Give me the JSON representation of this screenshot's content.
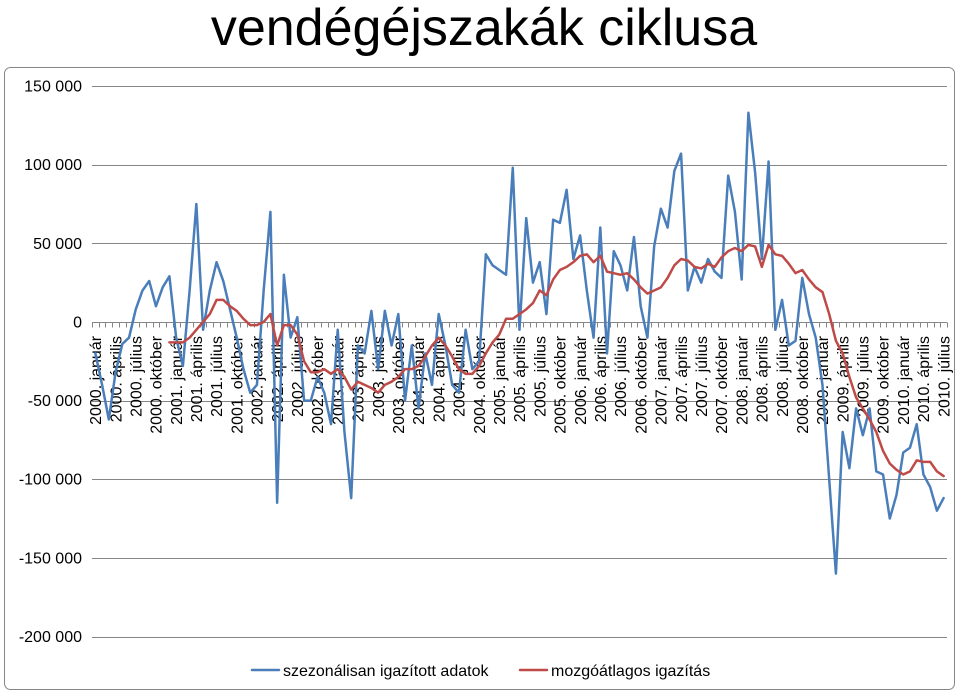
{
  "chart_data": {
    "type": "line",
    "title": "vendégéjszakák ciklusa",
    "categories": [
      "2000. január",
      "",
      "",
      "2000. április",
      "",
      "",
      "2000. július",
      "",
      "",
      "2000. október",
      "",
      "",
      "2001. január",
      "",
      "",
      "2001. április",
      "",
      "",
      "2001. július",
      "",
      "",
      "2001. október",
      "",
      "",
      "2002. január",
      "",
      "",
      "2002. április",
      "",
      "",
      "2002. július",
      "",
      "",
      "2002. október",
      "",
      "",
      "2003. január",
      "",
      "",
      "2003. április",
      "",
      "",
      "2003. július",
      "",
      "",
      "2003. október",
      "",
      "",
      "2004. január",
      "",
      "",
      "2004. április",
      "",
      "",
      "2004. július",
      "",
      "",
      "2004. október",
      "",
      "",
      "2005. január",
      "",
      "",
      "2005. április",
      "",
      "",
      "2005. július",
      "",
      "",
      "2005. október",
      "",
      "",
      "2006. január",
      "",
      "",
      "2006. április",
      "",
      "",
      "2006. július",
      "",
      "",
      "2006. október",
      "",
      "",
      "2007. január",
      "",
      "",
      "2007. április",
      "",
      "",
      "2007. július",
      "",
      "",
      "2007. október",
      "",
      "",
      "2008. január",
      "",
      "",
      "2008. április",
      "",
      "",
      "2008. július",
      "",
      "",
      "2008. október",
      "",
      "",
      "2009. január",
      "",
      "",
      "2009. április",
      "",
      "",
      "2009. július",
      "",
      "",
      "2009. október",
      "",
      "",
      "2010. január",
      "",
      "",
      "2010. április",
      "",
      "",
      "2010. július"
    ],
    "y_ticks": [
      150000,
      100000,
      50000,
      0,
      -50000,
      -100000,
      -150000,
      -200000
    ],
    "y_tick_labels": [
      "150 000",
      "100 000",
      "50 000",
      "0",
      "-50 000",
      "-100 000",
      "-150 000",
      "-200 000"
    ],
    "ylim": [
      -200000,
      150000
    ],
    "grid": true,
    "legend_position": "bottom",
    "series": [
      {
        "name": "szezonálisan igazított adatok",
        "color": "#4a7ebb",
        "values": [
          -20000,
          -40000,
          -62000,
          -32000,
          -14000,
          -10000,
          8000,
          20000,
          26000,
          10000,
          22000,
          29000,
          -10000,
          -28000,
          20000,
          75000,
          -5000,
          20000,
          38000,
          26000,
          8000,
          -10000,
          -30000,
          -45000,
          -40000,
          20000,
          70000,
          -115000,
          30000,
          -10000,
          3000,
          -50000,
          -50000,
          -35000,
          -45000,
          -65000,
          -5000,
          -70000,
          -112000,
          -15000,
          -20000,
          7000,
          -30000,
          7000,
          -15000,
          5000,
          -50000,
          -15000,
          -55000,
          -20000,
          -40000,
          5000,
          -15000,
          -40000,
          -45000,
          -5000,
          -30000,
          -25000,
          43000,
          36000,
          33000,
          30000,
          98000,
          -5000,
          66000,
          25000,
          38000,
          5000,
          65000,
          63000,
          84000,
          40000,
          55000,
          20000,
          -10000,
          60000,
          -20000,
          45000,
          36000,
          20000,
          54000,
          10000,
          -10000,
          48000,
          72000,
          60000,
          96000,
          107000,
          20000,
          35000,
          25000,
          40000,
          32000,
          28000,
          93000,
          70000,
          27000,
          133000,
          95000,
          40000,
          102000,
          -5000,
          14000,
          -15000,
          -12000,
          28000,
          5000,
          -10000,
          -40000,
          -100000,
          -160000,
          -70000,
          -93000,
          -55000,
          -72000,
          -55000,
          -95000,
          -97000,
          -125000,
          -110000,
          -83000,
          -80000,
          -65000,
          -97000,
          -105000,
          -120000,
          -112000
        ]
      },
      {
        "name": "mozgóátlagos igazítás",
        "color": "#be4b48",
        "values": [
          null,
          null,
          null,
          null,
          null,
          null,
          null,
          null,
          null,
          null,
          null,
          -13000,
          -13000,
          -13000,
          -10000,
          -5000,
          0,
          5000,
          14000,
          14000,
          10000,
          7000,
          2000,
          -2000,
          -2000,
          0,
          5000,
          -15000,
          -2000,
          -2000,
          -8000,
          -25000,
          -32000,
          -32000,
          -30000,
          -33000,
          -30000,
          -35000,
          -43000,
          -38000,
          -40000,
          -42000,
          -45000,
          -40000,
          -38000,
          -35000,
          -30000,
          -30000,
          -28000,
          -22000,
          -15000,
          -10000,
          -15000,
          -22000,
          -30000,
          -33000,
          -33000,
          -28000,
          -20000,
          -13000,
          -8000,
          2000,
          2000,
          5000,
          8000,
          12000,
          20000,
          17000,
          27000,
          33000,
          35000,
          38000,
          42000,
          43000,
          38000,
          42000,
          32000,
          31000,
          30000,
          31000,
          27000,
          22000,
          18000,
          20000,
          22000,
          28000,
          36000,
          40000,
          39000,
          35000,
          34000,
          37000,
          35000,
          41000,
          45000,
          47000,
          45000,
          49000,
          48000,
          35000,
          49000,
          43000,
          42000,
          37000,
          31000,
          33000,
          27000,
          22000,
          19000,
          5000,
          -12000,
          -20000,
          -35000,
          -48000,
          -55000,
          -62000,
          -70000,
          -82000,
          -90000,
          -94000,
          -97000,
          -95000,
          -88000,
          -89000,
          -89000,
          -95000,
          -98000
        ]
      }
    ]
  }
}
